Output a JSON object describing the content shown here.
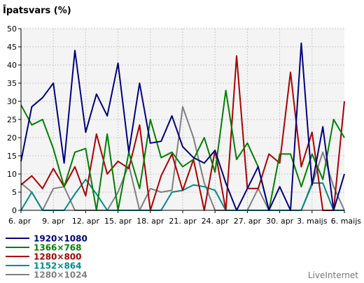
{
  "chart_data": {
    "type": "line",
    "title": "Īpatsvars (%)",
    "ylim": [
      0,
      50
    ],
    "yticks": [
      0,
      5,
      10,
      15,
      20,
      25,
      30,
      35,
      40,
      45,
      50
    ],
    "x_categories": [
      "6. apr",
      "7. apr",
      "8. apr",
      "9. apr",
      "10. apr",
      "11. apr",
      "12. apr",
      "13. apr",
      "14. apr",
      "15. apr",
      "16. apr",
      "17. apr",
      "18. apr",
      "19. apr",
      "20. apr",
      "21. apr",
      "22. apr",
      "23. apr",
      "24. apr",
      "25. apr",
      "26. apr",
      "27. apr",
      "28. apr",
      "29. apr",
      "30. apr",
      "1. maijs",
      "2. maijs",
      "3. maijs",
      "4. maijs",
      "5. maijs",
      "6. maijs"
    ],
    "x_tick_labels": [
      "6. apr",
      "9. apr",
      "12. apr",
      "15. apr",
      "18. apr",
      "21. apr",
      "24. apr",
      "27. apr",
      "30. apr",
      "3. maijs",
      "6. maijs"
    ],
    "grid": true,
    "legend_position": "bottom-left",
    "series": [
      {
        "name": "1920×1080",
        "color": "#000080",
        "values": [
          13.5,
          28.5,
          31,
          35,
          13,
          44,
          21.5,
          32,
          26,
          40.5,
          16,
          35,
          18.5,
          19,
          26,
          17.5,
          14.5,
          13,
          16.5,
          7.5,
          0,
          6,
          12,
          0,
          6.5,
          0,
          46,
          7,
          23,
          0,
          10
        ]
      },
      {
        "name": "1366×768",
        "color": "#008000",
        "values": [
          29,
          23.5,
          25,
          17,
          6.5,
          16,
          17,
          0,
          21,
          0,
          16,
          6,
          25,
          14.5,
          16,
          12,
          14,
          20,
          10.5,
          33,
          14,
          18.5,
          12,
          0,
          15.5,
          15.5,
          6.5,
          15.5,
          8.5,
          25,
          20
        ]
      },
      {
        "name": "1280×800",
        "color": "#aa0000",
        "values": [
          7,
          9.5,
          6,
          11.5,
          6.5,
          12,
          4,
          21,
          10,
          13.5,
          11.5,
          23.5,
          0,
          9.5,
          15.5,
          5.5,
          14,
          0,
          16.5,
          0,
          42.5,
          6,
          6,
          15.5,
          13,
          38,
          12,
          21.5,
          0,
          0,
          30
        ]
      },
      {
        "name": "1152×864",
        "color": "#008b8b",
        "values": [
          0,
          5,
          0,
          0,
          0,
          4.5,
          8.5,
          4.5,
          0,
          0,
          0,
          0,
          0,
          0,
          5,
          5.5,
          7,
          6.5,
          5.5,
          0,
          0,
          0,
          0,
          0,
          0,
          0,
          0,
          7.5,
          7.5,
          0,
          0
        ]
      },
      {
        "name": "1280×1024",
        "color": "#808080",
        "values": [
          7.5,
          5,
          0,
          6,
          6.5,
          0,
          0,
          0,
          0,
          5,
          12.5,
          0,
          6,
          5,
          5.5,
          28.5,
          20,
          7.5,
          0,
          0,
          0,
          0,
          6,
          0,
          0,
          0,
          0,
          7,
          16,
          6.5,
          0
        ]
      }
    ]
  },
  "watermark": "LiveInternet"
}
